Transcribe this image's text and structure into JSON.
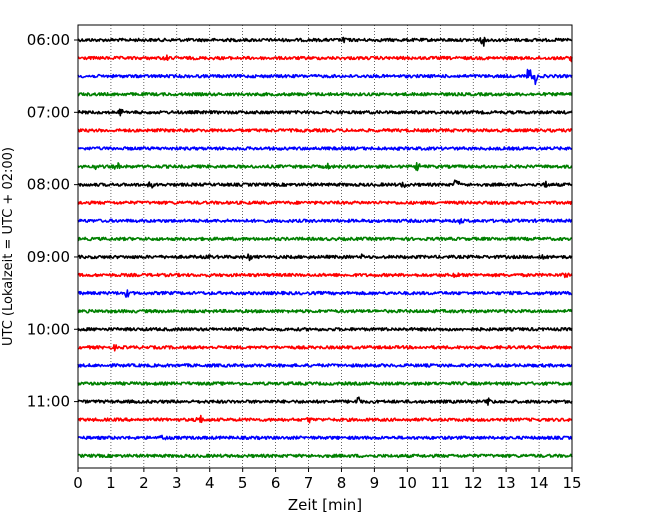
{
  "chart_data": {
    "type": "line",
    "title": "",
    "xlabel": "Zeit  [min]",
    "ylabel": "UTC (Lokalzeit = UTC + 02:00)",
    "xlim": [
      0,
      15
    ],
    "x_ticks": [
      0,
      1,
      2,
      3,
      4,
      5,
      6,
      7,
      8,
      9,
      10,
      11,
      12,
      13,
      14,
      15
    ],
    "y_tick_labels": [
      "06:00",
      "07:00",
      "08:00",
      "09:00",
      "10:00",
      "11:00"
    ],
    "grid": "vertical dotted",
    "colors": [
      "#000000",
      "#ff0000",
      "#0000ff",
      "#008000"
    ],
    "trace_start_times": [
      "06:00",
      "06:15",
      "06:30",
      "06:45",
      "07:00",
      "07:15",
      "07:30",
      "07:45",
      "08:00",
      "08:15",
      "08:30",
      "08:45",
      "09:00",
      "09:15",
      "09:30",
      "09:45",
      "10:00",
      "10:15",
      "10:30",
      "10:45",
      "11:00",
      "11:15",
      "11:30",
      "11:45"
    ],
    "events": [
      {
        "trace": 0,
        "t": 12.3,
        "amp": 1.0
      },
      {
        "trace": 0,
        "t": 8.1,
        "amp": 0.6
      },
      {
        "trace": 1,
        "t": 2.7,
        "amp": 0.6
      },
      {
        "trace": 1,
        "t": 15.0,
        "amp": 0.7
      },
      {
        "trace": 2,
        "t": 13.7,
        "amp": 1.6
      },
      {
        "trace": 2,
        "t": 13.9,
        "amp": 1.4
      },
      {
        "trace": 4,
        "t": 1.3,
        "amp": 0.6
      },
      {
        "trace": 7,
        "t": 0.5,
        "amp": 0.7
      },
      {
        "trace": 7,
        "t": 1.2,
        "amp": 0.7
      },
      {
        "trace": 7,
        "t": 7.6,
        "amp": 0.6
      },
      {
        "trace": 7,
        "t": 10.3,
        "amp": 1.1
      },
      {
        "trace": 8,
        "t": 9.9,
        "amp": 1.0
      },
      {
        "trace": 8,
        "t": 11.5,
        "amp": 1.3
      },
      {
        "trace": 8,
        "t": 14.2,
        "amp": 0.9
      },
      {
        "trace": 8,
        "t": 2.2,
        "amp": 0.5
      },
      {
        "trace": 10,
        "t": 11.6,
        "amp": 0.5
      },
      {
        "trace": 12,
        "t": 4.0,
        "amp": 0.8
      },
      {
        "trace": 12,
        "t": 5.2,
        "amp": 0.6
      },
      {
        "trace": 12,
        "t": 8.6,
        "amp": 0.5
      },
      {
        "trace": 12,
        "t": 14.1,
        "amp": 0.6
      },
      {
        "trace": 13,
        "t": 11.5,
        "amp": 0.6
      },
      {
        "trace": 13,
        "t": 14.8,
        "amp": 0.6
      },
      {
        "trace": 14,
        "t": 1.5,
        "amp": 0.9
      },
      {
        "trace": 16,
        "t": 9.2,
        "amp": 0.5
      },
      {
        "trace": 17,
        "t": 1.1,
        "amp": 0.5
      },
      {
        "trace": 20,
        "t": 8.5,
        "amp": 1.1
      },
      {
        "trace": 20,
        "t": 12.5,
        "amp": 0.8
      },
      {
        "trace": 21,
        "t": 3.7,
        "amp": 0.9
      },
      {
        "trace": 21,
        "t": 7.0,
        "amp": 0.6
      },
      {
        "trace": 22,
        "t": 2.6,
        "amp": 0.6
      }
    ]
  }
}
